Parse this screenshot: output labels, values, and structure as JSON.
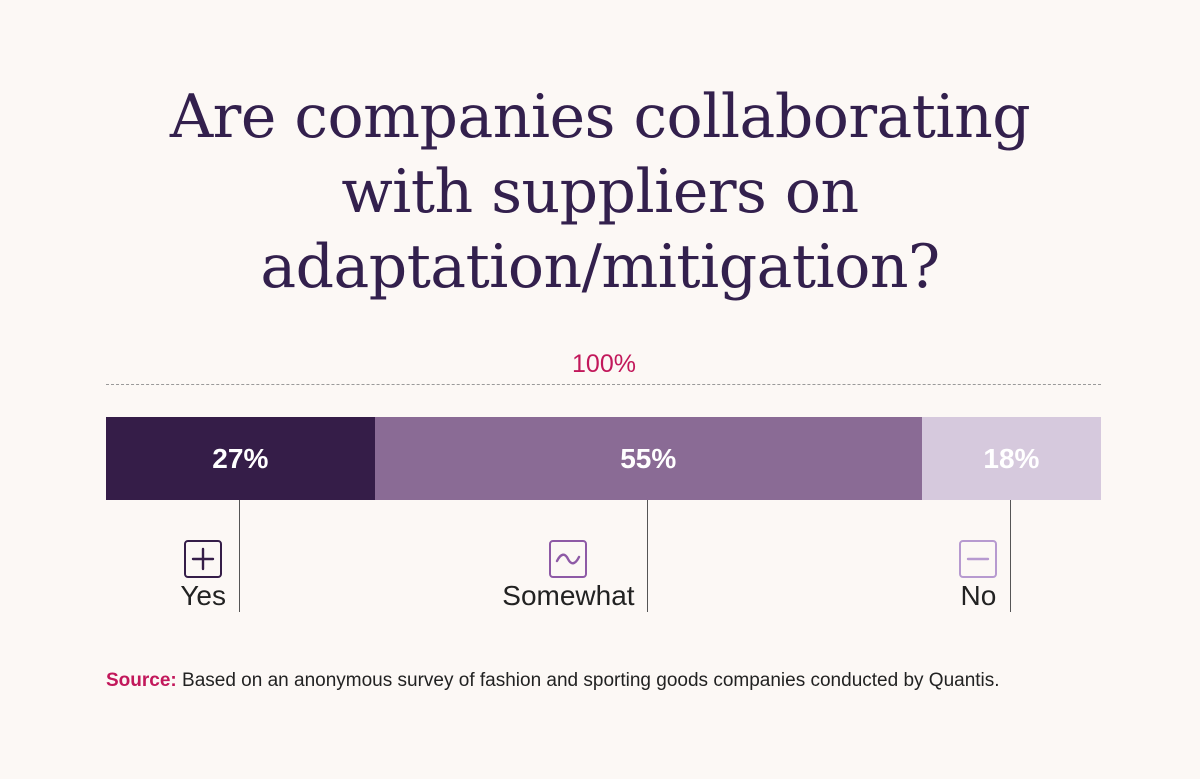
{
  "title_lines": [
    "Are companies collaborating",
    "with suppliers on",
    "adaptation/mitigation?"
  ],
  "total_label": "100%",
  "chart_data": {
    "type": "bar",
    "orientation": "horizontal-stacked",
    "title": "Are companies collaborating with suppliers on adaptation/mitigation?",
    "total": 100,
    "unit": "%",
    "categories": [
      "Yes",
      "Somewhat",
      "No"
    ],
    "values": [
      27,
      55,
      18
    ],
    "value_labels": [
      "27%",
      "55%",
      "18%"
    ],
    "colors": [
      "#351d48",
      "#8a6b95",
      "#d6c9dd"
    ],
    "icons": [
      "plus-icon",
      "tilde-icon",
      "minus-icon"
    ],
    "icon_colors": [
      "#351d48",
      "#8e5aa6",
      "#b79ad0"
    ]
  },
  "source": {
    "label": "Source:",
    "text": "Based on an anonymous survey of fashion and sporting goods companies conducted by Quantis."
  }
}
